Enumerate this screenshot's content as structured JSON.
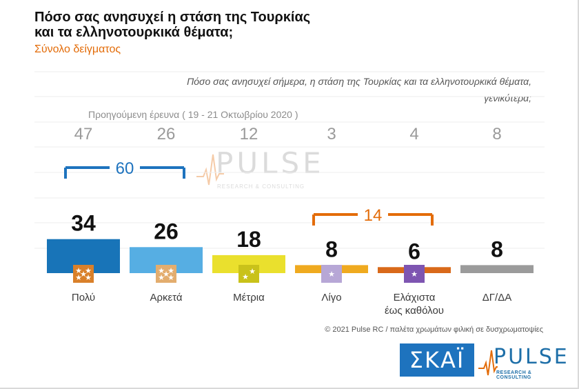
{
  "header": {
    "title_line1": "Πόσο σας ανησυχεί η στάση της Τουρκίας",
    "title_line2": "και τα ελληνοτουρκικά θέματα;",
    "subtitle": "Σύνολο δείγματος"
  },
  "question": "Πόσο σας ανησυχεί σήμερα, η στάση της Τουρκίας και τα ελληνοτουρκικά θέματα, γενικότερα;",
  "previous_survey_label": "Προηγούμενη έρευνα  ( 19 - 21 Οκτωβρίου 2020 )",
  "footer": {
    "copyright": "© 2021 Pulse RC  /  παλέτα χρωμάτων φιλική σε δυσχρωματοψίες"
  },
  "logos": {
    "skai": "ΣΚΑΪ",
    "pulse": "PULSE",
    "pulse_tag": "RESEARCH & CONSULTING",
    "watermark": "PULSE",
    "watermark_tag": "RESEARCH & CONSULTING"
  },
  "colors": {
    "accent_blue": "#1e73be",
    "accent_orange": "#e36c09",
    "grey": "#9b9b9b"
  },
  "chart_data": {
    "type": "bar",
    "categories": [
      "Πολύ",
      "Αρκετά",
      "Μέτρια",
      "Λίγο",
      "Ελάχιστα έως καθόλου",
      "ΔΓ/ΔΑ"
    ],
    "category_lines": [
      [
        "Πολύ"
      ],
      [
        "Αρκετά"
      ],
      [
        "Μέτρια"
      ],
      [
        "Λίγο"
      ],
      [
        "Ελάχιστα",
        "έως καθόλου"
      ],
      [
        "ΔΓ/ΔΑ"
      ]
    ],
    "series": [
      {
        "values": [
          34,
          26,
          18,
          8,
          6,
          8
        ]
      },
      {
        "values": [
          47,
          26,
          12,
          3,
          4,
          8
        ]
      }
    ],
    "bar_colors": [
      "#1874b8",
      "#56aee3",
      "#eae02d",
      "#efaa1f",
      "#d9691a",
      "#9b9b9b"
    ],
    "badge_colors": [
      "#d9802a",
      "#e3ad6e",
      "#c9c21a",
      "#b7a7d6",
      "#7e55b1",
      null
    ],
    "badge_stars": [
      3,
      3,
      2,
      1,
      1,
      0
    ],
    "groups": [
      {
        "label": "60",
        "categories": [
          0,
          1
        ],
        "color": "#1e73be",
        "position": "top"
      },
      {
        "label": "14",
        "categories": [
          3,
          4
        ],
        "color": "#e36c09",
        "position": "middle"
      }
    ],
    "ylim": [
      0,
      100
    ]
  }
}
